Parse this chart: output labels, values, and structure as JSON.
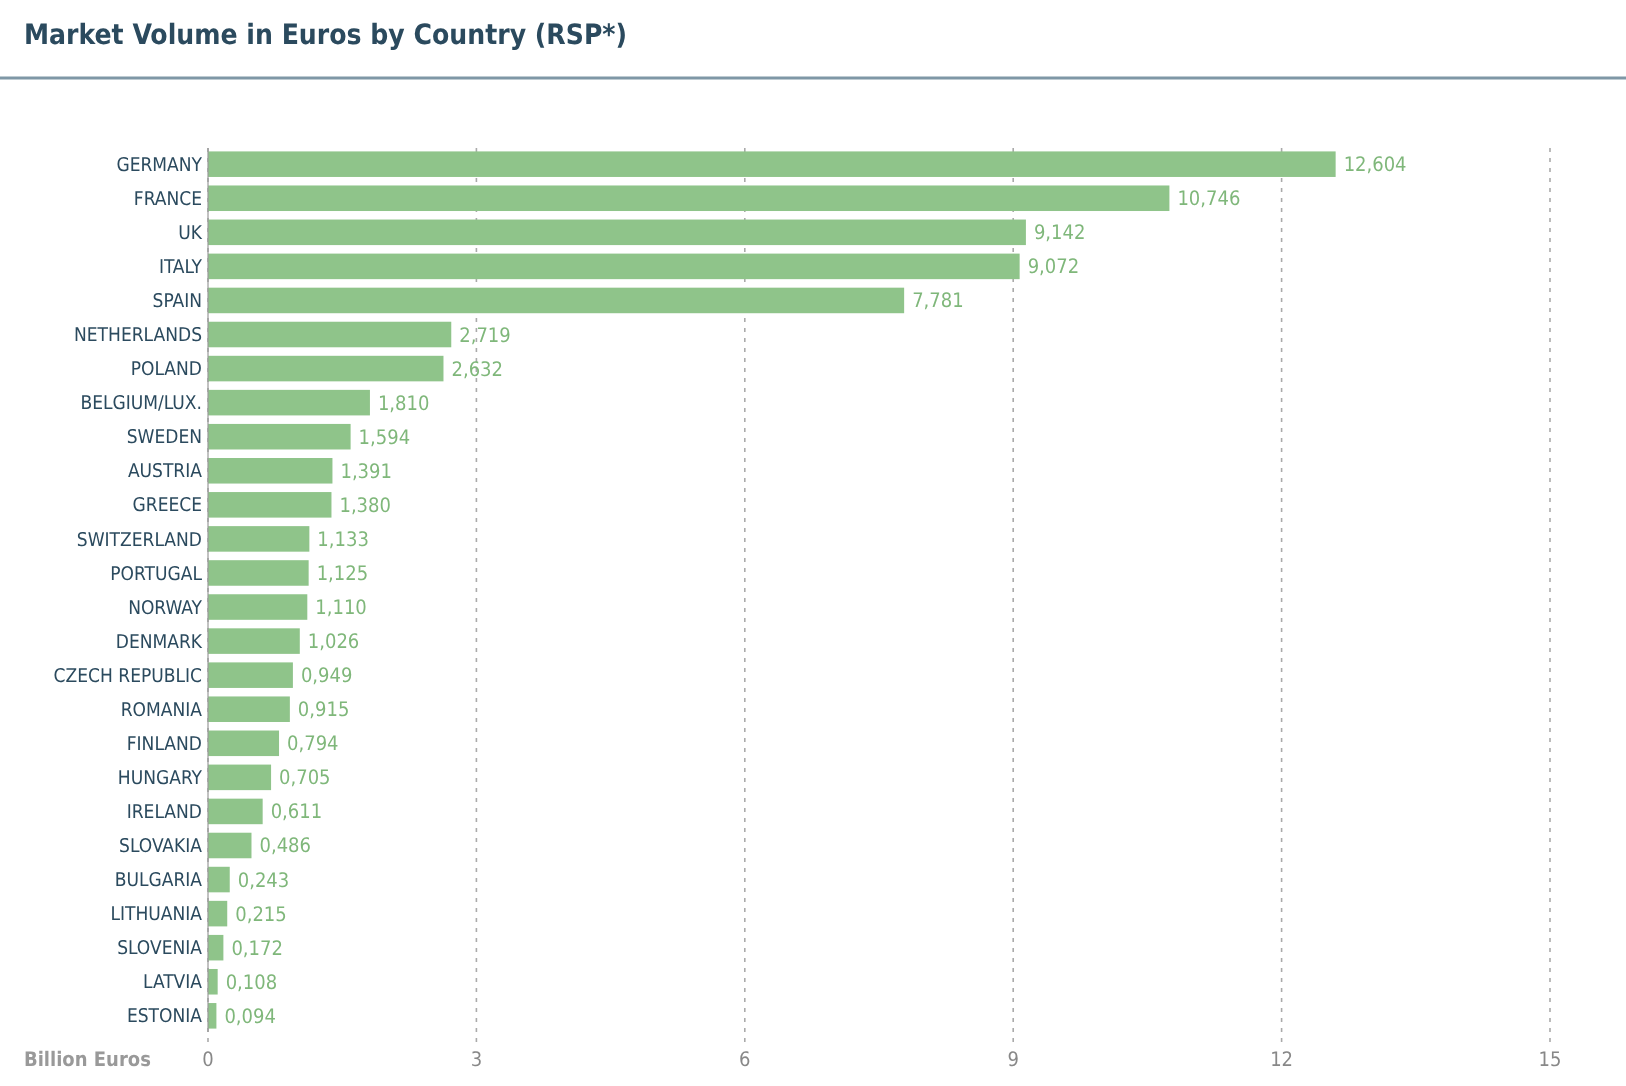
{
  "chart_data": {
    "type": "bar",
    "orientation": "horizontal",
    "title": "Market Volume in Euros by Country (RSP*)",
    "xlabel": "Billion Euros",
    "categories": [
      "GERMANY",
      "FRANCE",
      "UK",
      "ITALY",
      "SPAIN",
      "NETHERLANDS",
      "POLAND",
      "BELGIUM/LUX.",
      "SWEDEN",
      "AUSTRIA",
      "GREECE",
      "SWITZERLAND",
      "PORTUGAL",
      "NORWAY",
      "DENMARK",
      "CZECH REPUBLIC",
      "ROMANIA",
      "FINLAND",
      "HUNGARY",
      "IRELAND",
      "SLOVAKIA",
      "BULGARIA",
      "LITHUANIA",
      "SLOVENIA",
      "LATVIA",
      "ESTONIA"
    ],
    "values": [
      12.604,
      10.746,
      9.142,
      9.072,
      7.781,
      2.719,
      2.632,
      1.81,
      1.594,
      1.391,
      1.38,
      1.133,
      1.125,
      1.11,
      1.026,
      0.949,
      0.915,
      0.794,
      0.705,
      0.611,
      0.486,
      0.243,
      0.215,
      0.172,
      0.108,
      0.094
    ],
    "value_labels": [
      "12,604",
      "10,746",
      "9,142",
      "9,072",
      "7,781",
      "2,719",
      "2,632",
      "1,810",
      "1,594",
      "1,391",
      "1,380",
      "1,133",
      "1,125",
      "1,110",
      "1,026",
      "0,949",
      "0,915",
      "0,794",
      "0,705",
      "0,611",
      "0,486",
      "0,243",
      "0,215",
      "0,172",
      "0,108",
      "0,094"
    ],
    "color": "#8fc48a",
    "xlim": [
      0,
      15
    ],
    "xticks": [
      0,
      3,
      6,
      9,
      12,
      15
    ],
    "grid": "x"
  }
}
